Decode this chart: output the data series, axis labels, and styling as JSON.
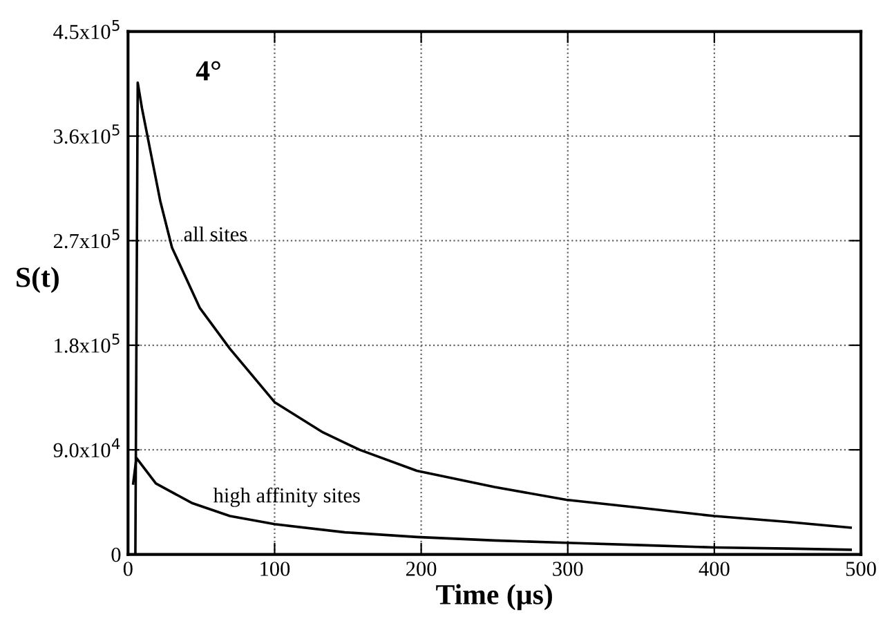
{
  "chart_data": {
    "type": "line",
    "xlabel": "Time (µs)",
    "ylabel": "S(t)",
    "annotations": [
      "4°"
    ],
    "xlim": [
      0,
      500
    ],
    "xticks": [
      0,
      100,
      200,
      300,
      400,
      500
    ],
    "ylim": [
      0,
      450000
    ],
    "yticks": [
      {
        "value": 0,
        "label": "0"
      },
      {
        "value": 90000,
        "label": "9.0x10$^{4}$"
      },
      {
        "value": 180000,
        "label": "1.8x10$^{5}$"
      },
      {
        "value": 270000,
        "label": "2.7x10$^{5}$"
      },
      {
        "value": 360000,
        "label": "3.6x10$^{5}$"
      },
      {
        "value": 450000,
        "label": "4.5x10$^{5}$"
      }
    ],
    "grid": true,
    "legend": false,
    "marker": "none",
    "line_style": "solid",
    "series": [
      {
        "name": "all sites",
        "color": "#000000",
        "x": [
          5,
          6.6,
          9.5,
          22,
          30,
          49,
          69.5,
          100,
          133,
          158,
          197,
          250,
          299,
          350,
          400,
          450,
          493
        ],
        "values": [
          0,
          406000,
          384000,
          304000,
          264000,
          212000,
          177000,
          131000,
          105000,
          90000,
          72000,
          58000,
          47000,
          40000,
          33000,
          28000,
          23000
        ]
      },
      {
        "name": "high affinity sites",
        "color": "#000000",
        "x": [
          3.5,
          5.7,
          19,
          44,
          69.5,
          100,
          148,
          197,
          250,
          299,
          350,
          400,
          450,
          493
        ],
        "values": [
          61000,
          83000,
          61000,
          44000,
          33000,
          26000,
          19000,
          15000,
          12000,
          10000,
          8000,
          6000,
          5000,
          4000
        ]
      }
    ]
  }
}
